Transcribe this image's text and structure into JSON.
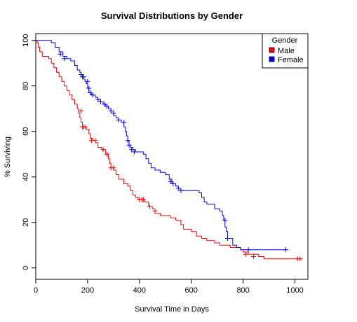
{
  "chart_data": {
    "type": "line",
    "title": "Survival Distributions by Gender",
    "xlabel": "Survival Time in Days",
    "ylabel": "% Surviving",
    "xlim": [
      0,
      1050
    ],
    "ylim": [
      -5,
      103
    ],
    "x_ticks": [
      "0",
      "200",
      "400",
      "600",
      "800",
      "1000"
    ],
    "y_ticks": [
      "0",
      "20",
      "40",
      "60",
      "80",
      "100"
    ],
    "x_tick_values": [
      0,
      200,
      400,
      600,
      800,
      1000
    ],
    "y_tick_values": [
      0,
      20,
      40,
      60,
      80,
      100
    ],
    "grid": false,
    "legend": {
      "title": "Gender",
      "placement": "top-right",
      "entries": [
        {
          "label": "Male",
          "color": "#ff0000"
        },
        {
          "label": "Female",
          "color": "#0000ff"
        }
      ]
    },
    "series": [
      {
        "name": "Male",
        "color": "#ff0000",
        "steps": [
          [
            0,
            100
          ],
          [
            5,
            99
          ],
          [
            10,
            97
          ],
          [
            15,
            95
          ],
          [
            25,
            93
          ],
          [
            50,
            92
          ],
          [
            60,
            90
          ],
          [
            70,
            88
          ],
          [
            80,
            86
          ],
          [
            90,
            84
          ],
          [
            100,
            82
          ],
          [
            110,
            80
          ],
          [
            120,
            78
          ],
          [
            130,
            76
          ],
          [
            140,
            74
          ],
          [
            150,
            72
          ],
          [
            160,
            70
          ],
          [
            165,
            68
          ],
          [
            170,
            66
          ],
          [
            175,
            64
          ],
          [
            180,
            62
          ],
          [
            195,
            61
          ],
          [
            205,
            59
          ],
          [
            210,
            57
          ],
          [
            220,
            56
          ],
          [
            230,
            55
          ],
          [
            240,
            53
          ],
          [
            255,
            52
          ],
          [
            270,
            50
          ],
          [
            280,
            48
          ],
          [
            285,
            46
          ],
          [
            290,
            44
          ],
          [
            300,
            43
          ],
          [
            310,
            41
          ],
          [
            320,
            39
          ],
          [
            340,
            37
          ],
          [
            355,
            36
          ],
          [
            365,
            34
          ],
          [
            375,
            32
          ],
          [
            385,
            31
          ],
          [
            395,
            30
          ],
          [
            420,
            29
          ],
          [
            435,
            27
          ],
          [
            450,
            26
          ],
          [
            460,
            24
          ],
          [
            480,
            23
          ],
          [
            520,
            22
          ],
          [
            540,
            21
          ],
          [
            560,
            19
          ],
          [
            570,
            17
          ],
          [
            600,
            16
          ],
          [
            620,
            14
          ],
          [
            640,
            13
          ],
          [
            660,
            12
          ],
          [
            690,
            11
          ],
          [
            710,
            10
          ],
          [
            750,
            9
          ],
          [
            790,
            8
          ],
          [
            800,
            7
          ],
          [
            820,
            6
          ],
          [
            860,
            5
          ],
          [
            880,
            4
          ],
          [
            1025,
            4
          ]
        ],
        "censored": [
          [
            175,
            69
          ],
          [
            180,
            62
          ],
          [
            185,
            62
          ],
          [
            190,
            62
          ],
          [
            215,
            56
          ],
          [
            230,
            56
          ],
          [
            260,
            52
          ],
          [
            275,
            50
          ],
          [
            290,
            44
          ],
          [
            300,
            44
          ],
          [
            400,
            30
          ],
          [
            410,
            30
          ],
          [
            415,
            30
          ],
          [
            440,
            27
          ],
          [
            460,
            25
          ],
          [
            810,
            6
          ],
          [
            840,
            5
          ],
          [
            1010,
            4
          ],
          [
            1020,
            4
          ]
        ]
      },
      {
        "name": "Female",
        "color": "#0000ff",
        "steps": [
          [
            0,
            100
          ],
          [
            60,
            99
          ],
          [
            75,
            97
          ],
          [
            90,
            95
          ],
          [
            105,
            93
          ],
          [
            120,
            92
          ],
          [
            135,
            91
          ],
          [
            150,
            89
          ],
          [
            160,
            87
          ],
          [
            170,
            86
          ],
          [
            175,
            85
          ],
          [
            180,
            84
          ],
          [
            185,
            83
          ],
          [
            190,
            82
          ],
          [
            195,
            81
          ],
          [
            200,
            79
          ],
          [
            205,
            77
          ],
          [
            215,
            76
          ],
          [
            230,
            75
          ],
          [
            240,
            74
          ],
          [
            250,
            73
          ],
          [
            260,
            72
          ],
          [
            270,
            71
          ],
          [
            280,
            70
          ],
          [
            290,
            69
          ],
          [
            300,
            67
          ],
          [
            310,
            66
          ],
          [
            320,
            65
          ],
          [
            330,
            64
          ],
          [
            340,
            62
          ],
          [
            345,
            60
          ],
          [
            350,
            58
          ],
          [
            355,
            56
          ],
          [
            360,
            54
          ],
          [
            365,
            53
          ],
          [
            375,
            52
          ],
          [
            385,
            51
          ],
          [
            415,
            50
          ],
          [
            425,
            48
          ],
          [
            435,
            46
          ],
          [
            445,
            44
          ],
          [
            460,
            43
          ],
          [
            480,
            42
          ],
          [
            500,
            41
          ],
          [
            515,
            39
          ],
          [
            525,
            37
          ],
          [
            540,
            36
          ],
          [
            550,
            35
          ],
          [
            560,
            34
          ],
          [
            630,
            33
          ],
          [
            640,
            31
          ],
          [
            650,
            29
          ],
          [
            660,
            28
          ],
          [
            690,
            26
          ],
          [
            710,
            25
          ],
          [
            720,
            23
          ],
          [
            725,
            21
          ],
          [
            730,
            18
          ],
          [
            735,
            16
          ],
          [
            740,
            13
          ],
          [
            760,
            10
          ],
          [
            775,
            9
          ],
          [
            790,
            8
          ],
          [
            965,
            8
          ]
        ],
        "censored": [
          [
            95,
            94
          ],
          [
            110,
            92
          ],
          [
            175,
            85
          ],
          [
            180,
            84
          ],
          [
            185,
            84
          ],
          [
            200,
            82
          ],
          [
            205,
            79
          ],
          [
            210,
            77
          ],
          [
            220,
            76
          ],
          [
            240,
            74
          ],
          [
            250,
            73
          ],
          [
            265,
            72
          ],
          [
            275,
            71
          ],
          [
            290,
            69
          ],
          [
            300,
            68
          ],
          [
            320,
            65
          ],
          [
            340,
            64
          ],
          [
            355,
            56
          ],
          [
            360,
            54
          ],
          [
            370,
            52
          ],
          [
            380,
            51
          ],
          [
            520,
            38
          ],
          [
            530,
            37
          ],
          [
            550,
            35
          ],
          [
            560,
            34
          ],
          [
            730,
            21
          ],
          [
            740,
            13
          ],
          [
            820,
            8
          ],
          [
            965,
            8
          ]
        ]
      }
    ]
  }
}
